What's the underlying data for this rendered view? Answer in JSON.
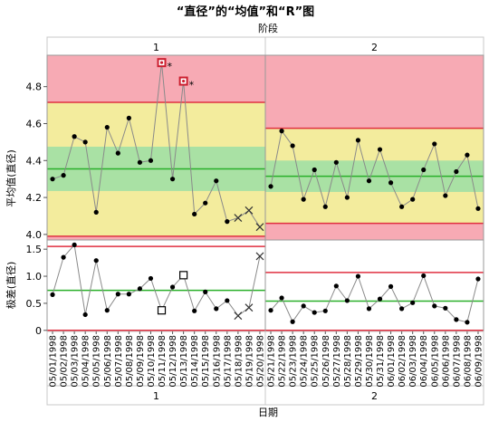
{
  "chart_data": {
    "type": "line",
    "title": "“直径”的“均值”和“R”图",
    "phase_axis_label": "阶段",
    "xlabel": "日期",
    "phases": [
      {
        "name": "1",
        "first_index": 0,
        "last_index": 19
      },
      {
        "name": "2",
        "first_index": 20,
        "last_index": 39
      }
    ],
    "dates": [
      "05/01/1998",
      "05/02/1998",
      "05/03/1998",
      "05/04/1998",
      "05/05/1998",
      "05/06/1998",
      "05/07/1998",
      "05/08/1998",
      "05/09/1998",
      "05/10/1998",
      "05/11/1998",
      "05/12/1998",
      "05/13/1998",
      "05/14/1998",
      "05/15/1998",
      "05/16/1998",
      "05/17/1998",
      "05/18/1998",
      "05/19/1998",
      "05/20/1998",
      "05/21/1998",
      "05/22/1998",
      "05/23/1998",
      "05/24/1998",
      "05/25/1998",
      "05/26/1998",
      "05/27/1998",
      "05/28/1998",
      "05/29/1998",
      "05/30/1998",
      "05/31/1998",
      "06/01/1998",
      "06/02/1998",
      "06/03/1998",
      "06/04/1998",
      "06/05/1998",
      "06/06/1998",
      "06/07/1998",
      "06/08/1998",
      "06/09/1998"
    ],
    "mean_chart": {
      "ylabel": "平均值(直径)",
      "ylim": [
        3.97,
        4.97
      ],
      "yticks": [
        4.0,
        4.2,
        4.4,
        4.6,
        4.8
      ],
      "values": [
        4.3,
        4.32,
        4.53,
        4.5,
        4.12,
        4.58,
        4.44,
        4.63,
        4.39,
        4.4,
        4.93,
        4.3,
        4.83,
        4.11,
        4.17,
        4.29,
        4.07,
        4.09,
        4.13,
        4.04,
        4.26,
        4.56,
        4.48,
        4.19,
        4.35,
        4.15,
        4.39,
        4.2,
        4.51,
        4.29,
        4.46,
        4.28,
        4.15,
        4.19,
        4.35,
        4.49,
        4.21,
        4.34,
        4.43,
        4.14
      ],
      "markers": [
        "dot",
        "dot",
        "dot",
        "dot",
        "dot",
        "dot",
        "dot",
        "dot",
        "dot",
        "dot",
        "square-red",
        "dot",
        "square-red",
        "dot",
        "dot",
        "dot",
        "dot",
        "x",
        "x",
        "x",
        "dot",
        "dot",
        "dot",
        "dot",
        "dot",
        "dot",
        "dot",
        "dot",
        "dot",
        "dot",
        "dot",
        "dot",
        "dot",
        "dot",
        "dot",
        "dot",
        "dot",
        "dot",
        "dot",
        "dot"
      ],
      "flag": "*",
      "limits": [
        {
          "center": 4.355,
          "ucl": 4.715,
          "lcl": 3.99,
          "sigma1": [
            4.235,
            4.475
          ],
          "sigma2": [
            4.115,
            4.595
          ]
        },
        {
          "center": 4.315,
          "ucl": 4.575,
          "lcl": 4.06,
          "sigma1": [
            4.23,
            4.4
          ],
          "sigma2": [
            4.14,
            4.49
          ]
        }
      ]
    },
    "range_chart": {
      "ylabel": "极差(直径)",
      "ylim": [
        -0.02,
        1.67
      ],
      "yticks": [
        0,
        0.5,
        1.0,
        1.5
      ],
      "ytick_labels": [
        "0",
        "0.5",
        "1.0",
        "1.5"
      ],
      "values": [
        0.66,
        1.35,
        1.58,
        0.29,
        1.29,
        0.37,
        0.67,
        0.67,
        0.77,
        0.96,
        0.37,
        0.8,
        1.02,
        0.36,
        0.71,
        0.4,
        0.55,
        0.27,
        0.42,
        1.37,
        0.37,
        0.6,
        0.16,
        0.45,
        0.33,
        0.36,
        0.82,
        0.55,
        1.0,
        0.4,
        0.58,
        0.81,
        0.4,
        0.51,
        1.01,
        0.45,
        0.41,
        0.2,
        0.15,
        0.95
      ],
      "markers": [
        "dot",
        "dot",
        "dot",
        "dot",
        "dot",
        "dot",
        "dot",
        "dot",
        "dot",
        "dot",
        "square",
        "dot",
        "square",
        "dot",
        "dot",
        "dot",
        "dot",
        "x",
        "x",
        "x",
        "dot",
        "dot",
        "dot",
        "dot",
        "dot",
        "dot",
        "dot",
        "dot",
        "dot",
        "dot",
        "dot",
        "dot",
        "dot",
        "dot",
        "dot",
        "dot",
        "dot",
        "dot",
        "dot",
        "dot"
      ],
      "limits": [
        {
          "center": 0.74,
          "ucl": 1.55,
          "lcl": 0.0
        },
        {
          "center": 0.54,
          "ucl": 1.07,
          "lcl": 0.0
        }
      ]
    },
    "colors": {
      "zone_outer": "#f7aab4",
      "zone_middle": "#f3ec9d",
      "zone_inner": "#a9e1a4",
      "limit_line": "#e03040",
      "center_line": "#2ab02a",
      "series_line": "#8a8a8a",
      "point": "#000000",
      "flagged_point": "#cc1f2f"
    },
    "grid": false,
    "legend": "none"
  }
}
